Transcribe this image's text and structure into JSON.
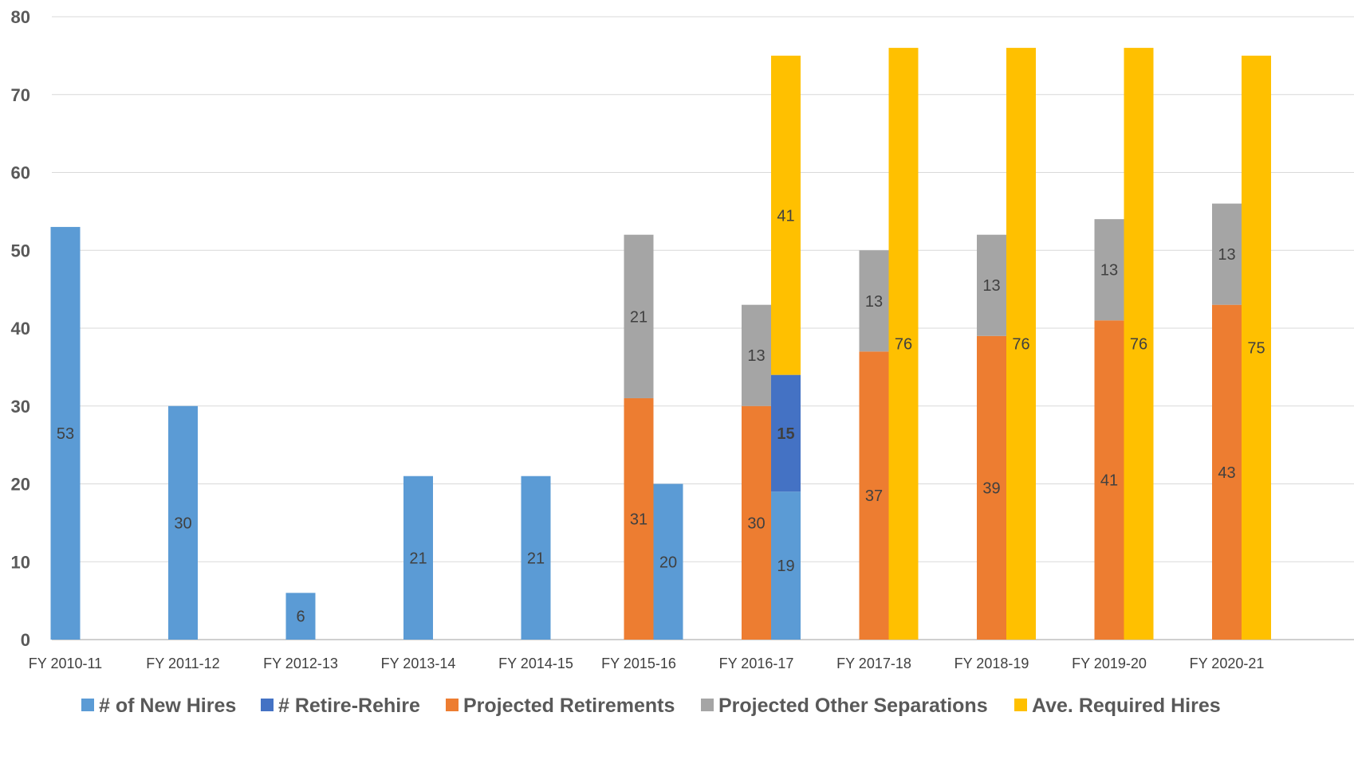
{
  "chart_data": {
    "type": "bar",
    "title": "",
    "xlabel": "",
    "ylabel": "",
    "ylim": [
      0,
      80
    ],
    "yticks": [
      0,
      10,
      20,
      30,
      40,
      50,
      60,
      70,
      80
    ],
    "grid": true,
    "legend_position": "bottom",
    "categories": [
      "FY 2010-11",
      "FY 2011-12",
      "FY 2012-13",
      "FY 2013-14",
      "FY 2014-15",
      "FY 2015-16",
      "FY 2016-17",
      "FY 2017-18",
      "FY 2018-19",
      "FY 2019-20",
      "FY 2020-21"
    ],
    "stacks": [
      {
        "id": "left",
        "series": [
          "Projected Retirements",
          "Projected Other Separations"
        ]
      },
      {
        "id": "right",
        "series": [
          "# of New Hires",
          "# Retire-Rehire",
          "Ave. Required Hires"
        ]
      }
    ],
    "series": [
      {
        "name": "# of New Hires",
        "stack": "right",
        "color": "#5B9BD5",
        "values": [
          53,
          30,
          6,
          21,
          21,
          20,
          19,
          null,
          null,
          null,
          null
        ],
        "labels": [
          "53",
          "30",
          "6",
          "21",
          "21",
          "20",
          "19",
          "",
          "",
          "",
          ""
        ]
      },
      {
        "name": "# Retire-Rehire",
        "stack": "right",
        "color": "#4472C4",
        "values": [
          null,
          null,
          null,
          null,
          null,
          null,
          15,
          null,
          null,
          null,
          null
        ],
        "labels": [
          "",
          "",
          "",
          "",
          "",
          "",
          "15",
          "",
          "",
          "",
          ""
        ]
      },
      {
        "name": "Projected Retirements",
        "stack": "left",
        "color": "#ED7D31",
        "values": [
          null,
          null,
          null,
          null,
          null,
          31,
          30,
          37,
          39,
          41,
          43
        ],
        "labels": [
          "",
          "",
          "",
          "",
          "",
          "31",
          "30",
          "37",
          "39",
          "41",
          "43"
        ]
      },
      {
        "name": "Projected Other Separations",
        "stack": "left",
        "color": "#A5A5A5",
        "values": [
          null,
          null,
          null,
          null,
          null,
          21,
          13,
          13,
          13,
          13,
          13
        ],
        "labels": [
          "",
          "",
          "",
          "",
          "",
          "21",
          "13",
          "13",
          "13",
          "13",
          "13"
        ]
      },
      {
        "name": "Ave. Required Hires",
        "stack": "right",
        "color": "#FFC000",
        "values": [
          null,
          null,
          null,
          null,
          null,
          null,
          41,
          76,
          76,
          76,
          75
        ],
        "labels": [
          "",
          "",
          "",
          "",
          "",
          "",
          "41",
          "76",
          "76",
          "76",
          "75"
        ]
      }
    ]
  }
}
